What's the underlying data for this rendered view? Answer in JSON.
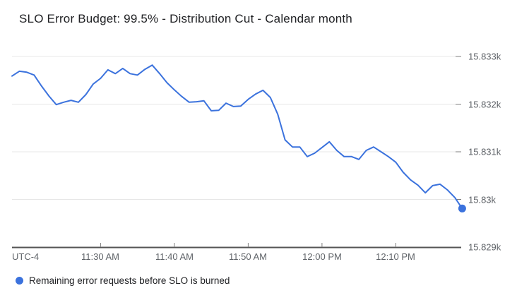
{
  "chart_data": {
    "type": "line",
    "title": "SLO Error Budget: 99.5% - Distribution Cut - Calendar month",
    "x_timezone_label": "UTC-4",
    "grid": "horizontal",
    "legend_position": "bottom-left",
    "end_point_marker": true,
    "line_color": "#3b72dd",
    "x": [
      "11:18",
      "11:19",
      "11:20",
      "11:21",
      "11:22",
      "11:23",
      "11:24",
      "11:25",
      "11:26",
      "11:27",
      "11:28",
      "11:29",
      "11:30",
      "11:31",
      "11:32",
      "11:33",
      "11:34",
      "11:35",
      "11:36",
      "11:37",
      "11:38",
      "11:39",
      "11:40",
      "11:41",
      "11:42",
      "11:43",
      "11:44",
      "11:45",
      "11:46",
      "11:47",
      "11:48",
      "11:49",
      "11:50",
      "11:51",
      "11:52",
      "11:53",
      "11:54",
      "11:55",
      "11:56",
      "11:57",
      "11:58",
      "11:59",
      "12:00",
      "12:01",
      "12:02",
      "12:03",
      "12:04",
      "12:05",
      "12:06",
      "12:07",
      "12:08",
      "12:09",
      "12:10",
      "12:11",
      "12:12",
      "12:13",
      "12:14",
      "12:15",
      "12:16",
      "12:17",
      "12:18",
      "12:19"
    ],
    "series": [
      {
        "name": "Remaining error requests before SLO is burned",
        "color": "#3b72dd",
        "values": [
          15832.59,
          15832.69,
          15832.67,
          15832.61,
          15832.38,
          15832.17,
          15831.99,
          15832.04,
          15832.08,
          15832.04,
          15832.2,
          15832.42,
          15832.54,
          15832.72,
          15832.64,
          15832.75,
          15832.64,
          15832.61,
          15832.73,
          15832.82,
          15832.64,
          15832.45,
          15832.3,
          15832.16,
          15832.04,
          15832.05,
          15832.07,
          15831.86,
          15831.87,
          15832.02,
          15831.95,
          15831.96,
          15832.1,
          15832.21,
          15832.29,
          15832.14,
          15831.79,
          15831.25,
          15831.1,
          15831.1,
          15830.9,
          15830.97,
          15831.09,
          15831.21,
          15831.03,
          15830.9,
          15830.9,
          15830.84,
          15831.03,
          15831.1,
          15831.0,
          15830.9,
          15830.78,
          15830.57,
          15830.41,
          15830.3,
          15830.14,
          15830.29,
          15830.32,
          15830.2,
          15830.04,
          15829.81
        ]
      }
    ],
    "x_tick_times": [
      "11:30",
      "11:40",
      "11:50",
      "12:00",
      "12:10"
    ],
    "x_tick_labels": [
      "11:30 AM",
      "11:40 AM",
      "11:50 AM",
      "12:00 PM",
      "12:10 PM"
    ],
    "y_tick_labels": [
      "15.833k",
      "15.832k",
      "15.831k",
      "15.83k",
      "15.829k"
    ],
    "y_tick_values": [
      15833,
      15832,
      15831,
      15830,
      15829
    ],
    "ylim": [
      15829,
      15833
    ]
  }
}
